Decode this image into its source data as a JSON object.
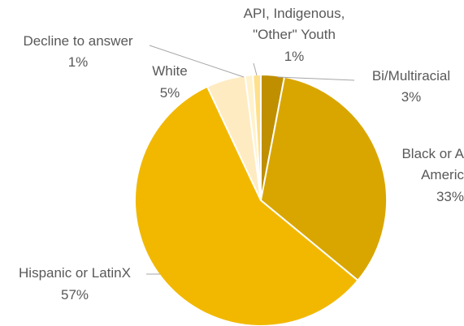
{
  "chart_data": {
    "type": "pie",
    "title": "",
    "slices": [
      {
        "label": "Bi/Multiracial",
        "value": 3,
        "value_label": "3%",
        "color": "#BF8F00"
      },
      {
        "label": "Black or African American",
        "value": 33,
        "value_label": "33%",
        "color": "#D9A600"
      },
      {
        "label": "Hispanic or LatinX",
        "value": 57,
        "value_label": "57%",
        "color": "#F2B800"
      },
      {
        "label": "White",
        "value": 5,
        "value_label": "5%",
        "color": "#FFEBC2"
      },
      {
        "label": "Decline to answer",
        "value": 1,
        "value_label": "1%",
        "color": "#FFF2CC"
      },
      {
        "label": "API, Indigenous, \"Other\" Youth",
        "value": 1,
        "value_label": "1%",
        "color": "#FFE08A"
      }
    ],
    "legend": "none"
  },
  "labels": {
    "bi_multiracial": {
      "name": "Bi/Multiracial",
      "value": "3%"
    },
    "black": {
      "name_line1": "Black or A",
      "name_line2": "Americ",
      "value": "33%"
    },
    "hispanic": {
      "name": "Hispanic or LatinX",
      "value": "57%"
    },
    "white": {
      "name": "White",
      "value": "5%"
    },
    "decline": {
      "name": "Decline to answer",
      "value": "1%"
    },
    "api": {
      "name_line1": "API, Indigenous,",
      "name_line2": "\"Other\" Youth",
      "value": "1%"
    }
  }
}
